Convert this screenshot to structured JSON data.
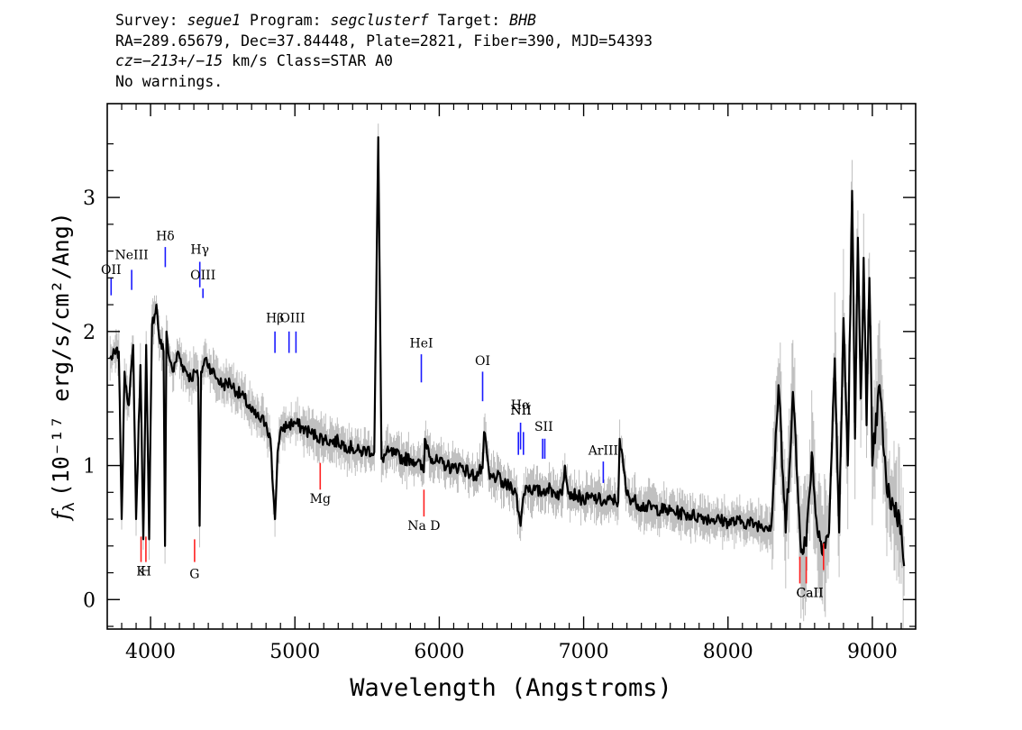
{
  "header": {
    "line1": {
      "survey_label": "Survey:",
      "survey": "segue1",
      "program_label": "Program:",
      "program": "segclusterf",
      "target_label": "Target:",
      "target": "BHB"
    },
    "line2": "RA=289.65679, Dec=37.84448, Plate=2821, Fiber=390, MJD=54393",
    "line3": {
      "cz_label": "cz=",
      "cz": "−213+/−15",
      "unit": " km/s Class=STAR A0"
    },
    "line4": "No warnings."
  },
  "chart_data": {
    "type": "line",
    "xlabel": "Wavelength (Angstroms)",
    "ylabel_prefix": "f",
    "ylabel_sub": "λ",
    "ylabel_body": "(10⁻¹⁷ erg/s/cm²/Ang)",
    "xlim": [
      3700,
      9300
    ],
    "ylim": [
      -0.22,
      3.7
    ],
    "x_ticks": [
      4000,
      5000,
      6000,
      7000,
      8000,
      9000
    ],
    "x_tick_labels": [
      "4000",
      "5000",
      "6000",
      "7000",
      "8000",
      "9000"
    ],
    "y_ticks": [
      0,
      1,
      2,
      3
    ],
    "y_tick_labels": [
      "0",
      "1",
      "2",
      "3"
    ],
    "colors": {
      "spectrum": "#000000",
      "noise": "#c0c0c0",
      "emission": "#1a1aff",
      "absorption": "#ff2020"
    },
    "series": [
      {
        "role": "flux",
        "x": [
          3720,
          3780,
          3800,
          3820,
          3850,
          3880,
          3900,
          3930,
          3950,
          3970,
          3990,
          4010,
          4040,
          4060,
          4090,
          4100,
          4110,
          4130,
          4160,
          4190,
          4220,
          4250,
          4280,
          4310,
          4330,
          4340,
          4350,
          4380,
          4420,
          4460,
          4500,
          4550,
          4600,
          4650,
          4700,
          4750,
          4800,
          4830,
          4850,
          4862,
          4880,
          4910,
          4950,
          5000,
          5050,
          5100,
          5150,
          5200,
          5250,
          5300,
          5350,
          5400,
          5450,
          5500,
          5550,
          5577,
          5600,
          5650,
          5700,
          5750,
          5800,
          5850,
          5893,
          5900,
          5950,
          6000,
          6050,
          6100,
          6150,
          6200,
          6250,
          6300,
          6310,
          6350,
          6400,
          6450,
          6500,
          6530,
          6550,
          6563,
          6580,
          6600,
          6650,
          6700,
          6750,
          6800,
          6850,
          6870,
          6900,
          6950,
          7000,
          7050,
          7100,
          7150,
          7200,
          7240,
          7250,
          7300,
          7400,
          7500,
          7600,
          7700,
          7800,
          7900,
          8000,
          8100,
          8200,
          8300,
          8350,
          8400,
          8450,
          8500,
          8542,
          8580,
          8620,
          8662,
          8700,
          8740,
          8770,
          8800,
          8830,
          8860,
          8880,
          8900,
          8920,
          8940,
          8960,
          8980,
          9000,
          9050,
          9100,
          9150,
          9200,
          9220
        ],
        "y": [
          1.8,
          1.85,
          0.6,
          1.7,
          1.45,
          1.9,
          0.6,
          1.75,
          0.45,
          1.9,
          0.45,
          2.05,
          2.2,
          1.95,
          1.85,
          0.4,
          2.0,
          1.8,
          1.7,
          1.85,
          1.75,
          1.7,
          1.65,
          1.7,
          1.65,
          0.55,
          1.7,
          1.8,
          1.72,
          1.65,
          1.6,
          1.62,
          1.55,
          1.5,
          1.4,
          1.35,
          1.32,
          1.2,
          0.8,
          0.6,
          1.1,
          1.28,
          1.3,
          1.32,
          1.28,
          1.25,
          1.22,
          1.2,
          1.18,
          1.18,
          1.15,
          1.13,
          1.1,
          1.12,
          1.1,
          3.45,
          1.05,
          1.1,
          1.08,
          1.05,
          1.05,
          1.03,
          0.95,
          1.2,
          1.05,
          1.02,
          1.0,
          0.98,
          1.0,
          0.95,
          0.92,
          0.98,
          1.25,
          0.9,
          0.92,
          0.85,
          0.85,
          0.8,
          0.65,
          0.55,
          0.75,
          0.85,
          0.82,
          0.8,
          0.83,
          0.8,
          0.78,
          1.0,
          0.8,
          0.78,
          0.74,
          0.76,
          0.75,
          0.72,
          0.75,
          0.73,
          1.2,
          0.78,
          0.7,
          0.68,
          0.66,
          0.64,
          0.62,
          0.6,
          0.58,
          0.58,
          0.56,
          0.55,
          1.6,
          0.5,
          1.55,
          0.45,
          0.4,
          1.1,
          0.5,
          0.42,
          0.5,
          1.8,
          0.5,
          2.1,
          1.0,
          3.05,
          1.2,
          2.7,
          1.5,
          2.55,
          1.3,
          2.4,
          1.0,
          1.6,
          0.8,
          0.7,
          0.55,
          0.25
        ]
      }
    ],
    "line_markers": [
      {
        "label": "OII",
        "x": 3727,
        "kind": "emission",
        "label_y": 2.43,
        "line": [
          2.27,
          2.4
        ]
      },
      {
        "label": "NeIII",
        "x": 3869,
        "kind": "emission",
        "label_y": 2.54,
        "line": [
          2.31,
          2.46
        ]
      },
      {
        "label": "Hδ",
        "x": 4102,
        "kind": "emission",
        "label_y": 2.68,
        "line": [
          2.48,
          2.63
        ]
      },
      {
        "label": "Hγ",
        "x": 4341,
        "kind": "emission",
        "label_y": 2.58,
        "line": [
          2.33,
          2.52
        ]
      },
      {
        "label": "OIII",
        "x": 4363,
        "kind": "emission",
        "label_y": 2.39,
        "line": [
          2.25,
          2.32
        ]
      },
      {
        "label": "Hβ",
        "x": 4862,
        "kind": "emission",
        "label_y": 2.07,
        "line": [
          1.84,
          2.0
        ]
      },
      {
        "label": "OIII",
        "x": 4959,
        "kind": "emission",
        "label_y": 2.07,
        "line": [
          1.84,
          2.0
        ]
      },
      {
        "label": "OIII",
        "x": 5007,
        "kind": "emission",
        "label_y": 2.07,
        "line": [
          1.84,
          2.0
        ]
      },
      {
        "label": "HeI",
        "x": 5876,
        "kind": "emission",
        "label_y": 1.88,
        "line": [
          1.62,
          1.83
        ]
      },
      {
        "label": "OI",
        "x": 6300,
        "kind": "emission",
        "label_y": 1.75,
        "line": [
          1.48,
          1.7
        ]
      },
      {
        "label": "NII",
        "x": 6548,
        "kind": "emission",
        "label_y": 1.38,
        "line": [
          1.08,
          1.25
        ]
      },
      {
        "label": "Hα",
        "x": 6563,
        "kind": "emission",
        "label_y": 1.42,
        "line": [
          1.12,
          1.32
        ]
      },
      {
        "label": "NII",
        "x": 6583,
        "kind": "emission",
        "label_y": 1.38,
        "line": [
          1.08,
          1.25
        ]
      },
      {
        "label": "SII",
        "x": 6716,
        "kind": "emission",
        "label_y": 1.26,
        "line": [
          1.05,
          1.2
        ]
      },
      {
        "label": "SII",
        "x": 6731,
        "kind": "emission",
        "label_y": 1.26,
        "line": [
          1.05,
          1.2
        ]
      },
      {
        "label": "ArIII",
        "x": 7136,
        "kind": "emission",
        "label_y": 1.08,
        "line": [
          0.87,
          1.03
        ]
      },
      {
        "label": "K",
        "x": 3934,
        "kind": "absorption",
        "label_y": 0.18,
        "line": [
          0.28,
          0.47
        ]
      },
      {
        "label": "H",
        "x": 3968,
        "kind": "absorption",
        "label_y": 0.18,
        "line": [
          0.28,
          0.47
        ]
      },
      {
        "label": "G",
        "x": 4305,
        "kind": "absorption",
        "label_y": 0.16,
        "line": [
          0.28,
          0.45
        ]
      },
      {
        "label": "Mg",
        "x": 5175,
        "kind": "absorption",
        "label_y": 0.72,
        "line": [
          0.82,
          1.02
        ]
      },
      {
        "label": "Na D",
        "x": 5894,
        "kind": "absorption",
        "label_y": 0.52,
        "line": [
          0.62,
          0.82
        ]
      },
      {
        "label": "CaII",
        "x": 8498,
        "kind": "absorption",
        "label_y": 0.02,
        "line": [
          0.12,
          0.32
        ]
      },
      {
        "label": "CaII",
        "x": 8542,
        "kind": "absorption",
        "label_y": 0.02,
        "line": [
          0.12,
          0.32
        ]
      },
      {
        "label": "CaII",
        "x": 8662,
        "kind": "absorption",
        "label_y": 0.02,
        "line": [
          0.22,
          0.42
        ]
      }
    ]
  }
}
